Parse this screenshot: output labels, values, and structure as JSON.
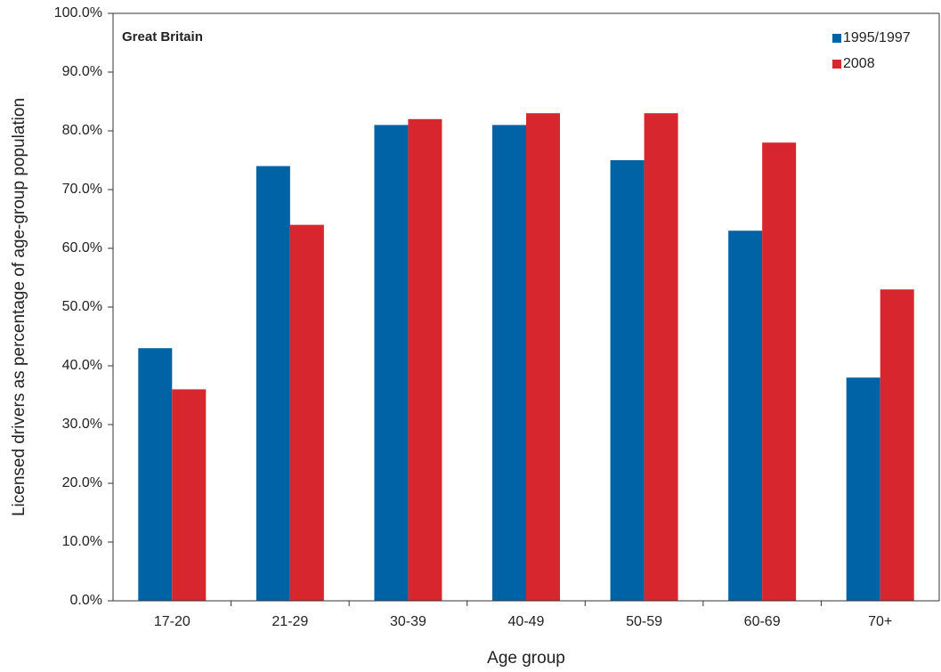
{
  "chart_data": {
    "type": "bar",
    "annotation": "Great Britain",
    "x_label": "Age group",
    "y_label": "Licensed drivers as percentage of age-group population",
    "categories": [
      "17-20",
      "21-29",
      "30-39",
      "40-49",
      "50-59",
      "60-69",
      "70+"
    ],
    "series": [
      {
        "name": "1995/1997",
        "color": "#0063a6",
        "values": [
          43,
          74,
          81,
          81,
          75,
          63,
          38
        ]
      },
      {
        "name": "2008",
        "color": "#d7262e",
        "values": [
          36,
          64,
          82,
          83,
          83,
          78,
          53
        ]
      }
    ],
    "ylim": [
      0,
      100
    ],
    "yticks": [
      {
        "value": 0,
        "label": "0.0%"
      },
      {
        "value": 10,
        "label": "10.0%"
      },
      {
        "value": 20,
        "label": "20.0%"
      },
      {
        "value": 30,
        "label": "30.0%"
      },
      {
        "value": 40,
        "label": "40.0%"
      },
      {
        "value": 50,
        "label": "50.0%"
      },
      {
        "value": 60,
        "label": "60.0%"
      },
      {
        "value": 70,
        "label": "70.0%"
      },
      {
        "value": 80,
        "label": "80.0%"
      },
      {
        "value": 90,
        "label": "90.0%"
      },
      {
        "value": 100,
        "label": "100.0%"
      }
    ],
    "grid": false,
    "legend": "top-right"
  }
}
